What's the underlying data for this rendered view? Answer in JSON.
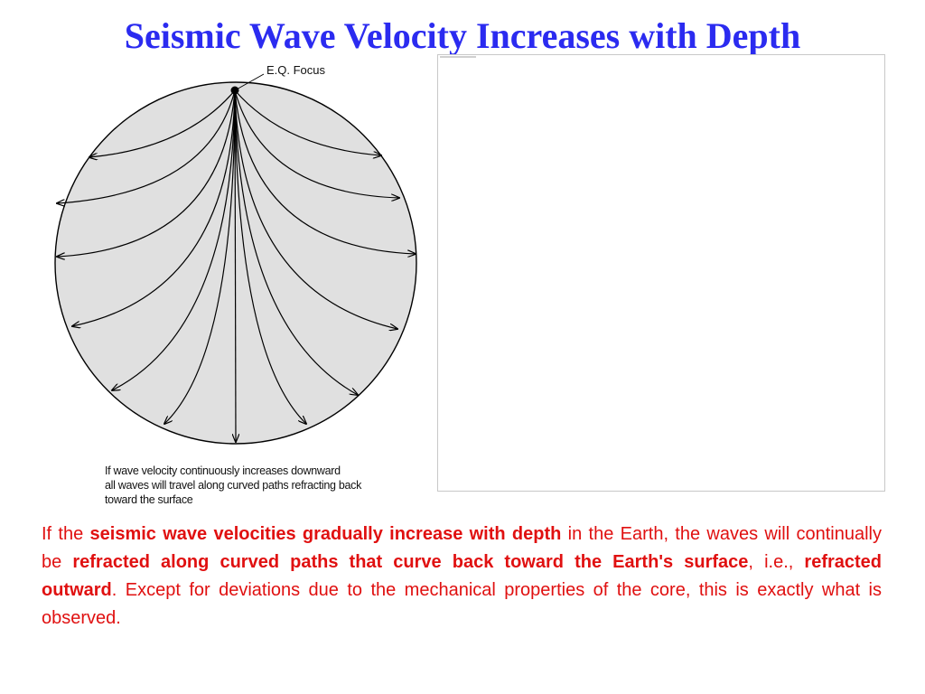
{
  "slide": {
    "title": "Seismic Wave Velocity Increases with Depth"
  },
  "diagram": {
    "focus_label": "E.Q. Focus",
    "caption": "If wave velocity continuously increases downward\nall waves will travel along curved paths refracting back\ntoward the surface",
    "colors": {
      "earth_fill": "#e0e0e0",
      "line": "#000000"
    }
  },
  "body": {
    "part1": "If the ",
    "bold1": "seismic wave velocities gradually increase with depth",
    "part2": " in the Earth, the waves will continually be ",
    "bold2": "refracted along curved paths that curve back toward the Earth's surface",
    "part3": ", i.e., ",
    "bold3": "refracted outward",
    "part4": ". Except for deviations due to the mechanical properties of the core, this is exactly what is observed."
  },
  "colors": {
    "title": "#2b2bf0",
    "body": "#e01010"
  }
}
